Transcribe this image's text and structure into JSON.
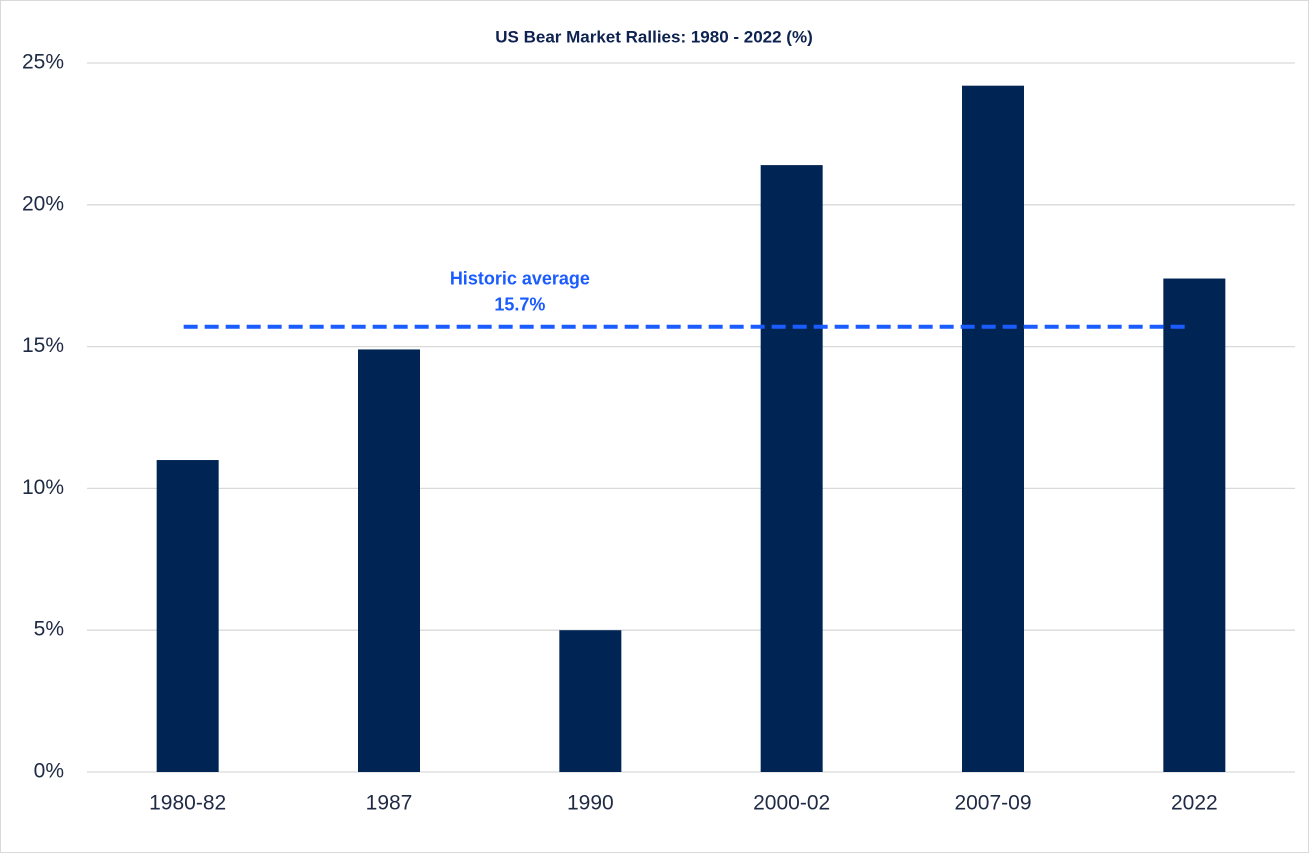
{
  "chart_data": {
    "type": "bar",
    "title": "US Bear Market Rallies: 1980 - 2022 (%)",
    "categories": [
      "1980-82",
      "1987",
      "1990",
      "2000-02",
      "2007-09",
      "2022"
    ],
    "values": [
      11.0,
      14.9,
      5.0,
      21.4,
      24.2,
      17.4
    ],
    "color": "#002554",
    "ylim": [
      0,
      25
    ],
    "yticks": [
      {
        "value": 0,
        "label": "0%"
      },
      {
        "value": 5,
        "label": "5%"
      },
      {
        "value": 10,
        "label": "10%"
      },
      {
        "value": 15,
        "label": "15%"
      },
      {
        "value": 20,
        "label": "20%"
      },
      {
        "value": 25,
        "label": "25%"
      }
    ],
    "grid": true,
    "reference_line": {
      "value": 15.7,
      "label": "Historic average",
      "value_label": "15.7%",
      "color": "#1a5cff"
    }
  }
}
